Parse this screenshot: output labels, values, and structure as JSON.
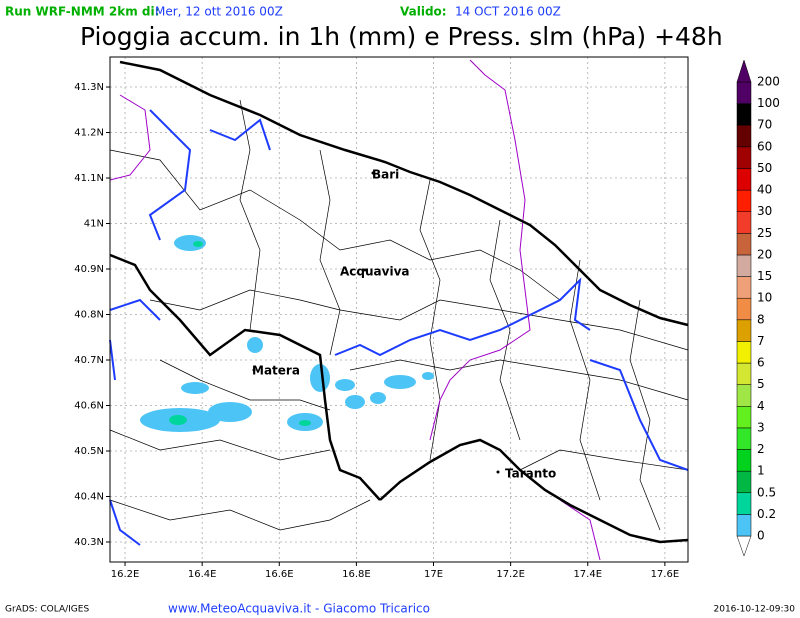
{
  "header": {
    "run_label": "Run WRF-NMM 2km di:",
    "run_date": "Mer, 12 ott 2016 00Z",
    "valid_label": "Valido:",
    "valid_date": "14 OCT 2016 00Z"
  },
  "title": "Pioggia accum. in 1h (mm) e Press. slm (hPa) +48h",
  "map": {
    "xlim": [
      16.161,
      17.66
    ],
    "ylim": [
      40.256,
      41.366
    ],
    "xticks": [
      {
        "value": 16.2,
        "label": "16.2E"
      },
      {
        "value": 16.4,
        "label": "16.4E"
      },
      {
        "value": 16.6,
        "label": "16.6E"
      },
      {
        "value": 16.8,
        "label": "16.8E"
      },
      {
        "value": 17,
        "label": "17E"
      },
      {
        "value": 17.2,
        "label": "17.2E"
      },
      {
        "value": 17.4,
        "label": "17.4E"
      },
      {
        "value": 17.6,
        "label": "17.6E"
      }
    ],
    "yticks": [
      {
        "value": 40.3,
        "label": "40.3N"
      },
      {
        "value": 40.4,
        "label": "40.4N"
      },
      {
        "value": 40.5,
        "label": "40.5N"
      },
      {
        "value": 40.6,
        "label": "40.6N"
      },
      {
        "value": 40.7,
        "label": "40.7N"
      },
      {
        "value": 40.8,
        "label": "40.8N"
      },
      {
        "value": 40.9,
        "label": "40.9N"
      },
      {
        "value": 41,
        "label": "41N"
      },
      {
        "value": 41.1,
        "label": "41.1N"
      },
      {
        "value": 41.2,
        "label": "41.2N"
      },
      {
        "value": 41.3,
        "label": "41.3N"
      }
    ],
    "cities": [
      "Bari",
      "Acquaviva",
      "Matera",
      "Taranto"
    ]
  },
  "colorbar": {
    "levels": [
      0,
      0.2,
      0.5,
      1,
      2,
      3,
      4,
      5,
      6,
      7,
      8,
      10,
      15,
      20,
      25,
      30,
      40,
      50,
      60,
      70,
      100,
      200
    ],
    "colors": [
      "#ffffff",
      "#4cc4f5",
      "#00d69c",
      "#00b844",
      "#00d21e",
      "#32e628",
      "#64f01e",
      "#a0e646",
      "#d2e632",
      "#f0f000",
      "#dca000",
      "#f08c46",
      "#f0a078",
      "#d2aaa0",
      "#c8643c",
      "#f03c28",
      "#ff1e00",
      "#dc0000",
      "#a00000",
      "#640000",
      "#000000",
      "#500064"
    ]
  },
  "footer": {
    "left": "GrADS: COLA/IGES",
    "center": "www.MeteoAcquaviva.it - Giacomo Tricarico",
    "right": "2016-10-12-09:30"
  }
}
